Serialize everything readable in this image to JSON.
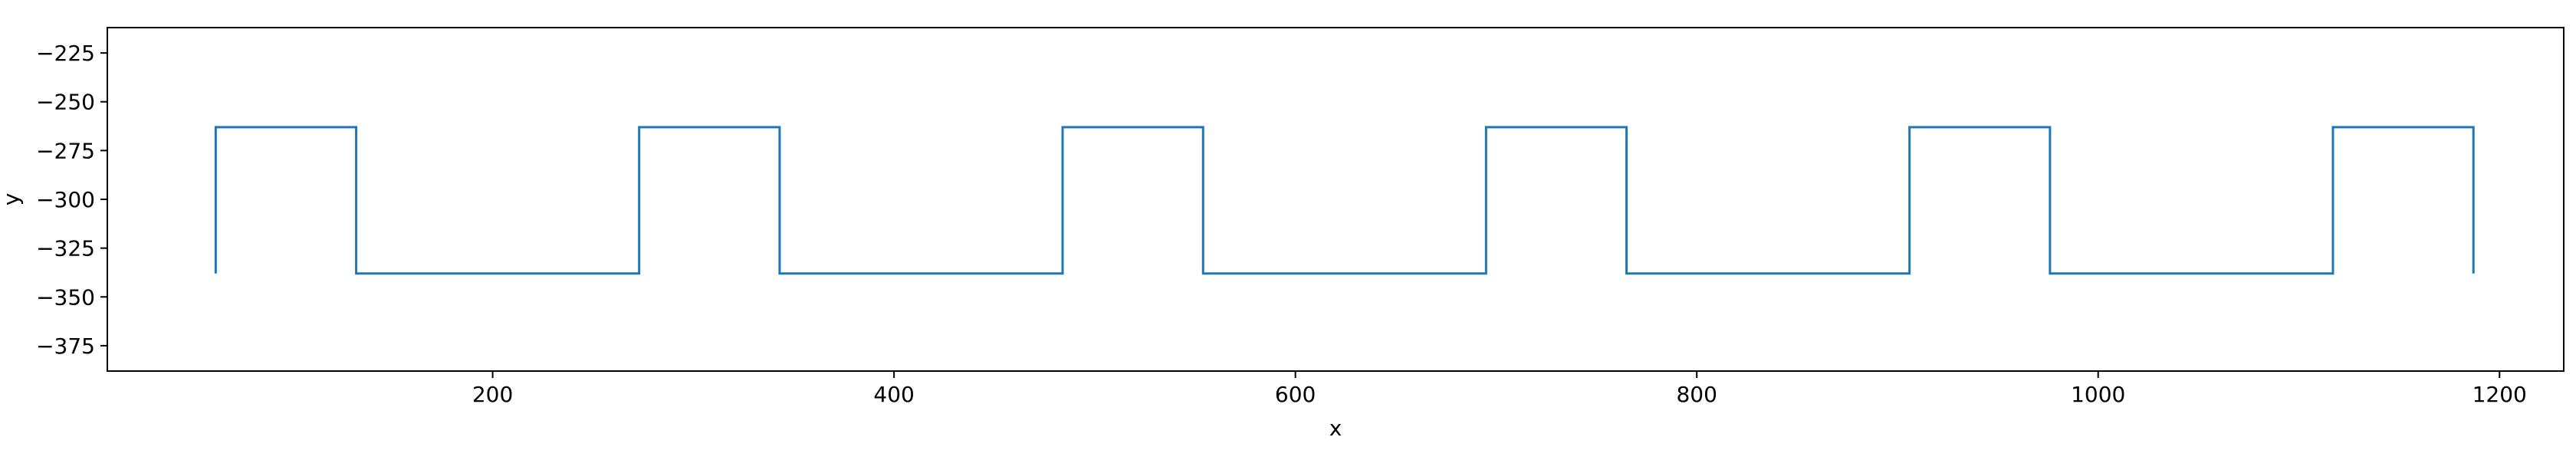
{
  "chart_data": {
    "type": "line",
    "title": "",
    "xlabel": "x",
    "ylabel": "y",
    "xlim": [
      8,
      1232
    ],
    "ylim": [
      -388,
      -212
    ],
    "xticks": [
      200,
      400,
      600,
      800,
      1000,
      1200
    ],
    "xtick_labels": [
      "200",
      "400",
      "600",
      "800",
      "1000",
      "1200"
    ],
    "yticks": [
      -225,
      -250,
      -275,
      -300,
      -325,
      -350,
      -375
    ],
    "ytick_labels": [
      "−225",
      "−250",
      "−275",
      "−300",
      "−325",
      "−350",
      "−375"
    ],
    "grid": false,
    "legend": "none",
    "series": [
      {
        "color": "#1f77b4",
        "x": [
          62,
          62,
          132,
          132,
          273,
          273,
          343,
          343,
          484,
          484,
          554,
          554,
          695,
          695,
          765,
          765,
          906,
          906,
          976,
          976,
          1117,
          1117,
          1187,
          1187
        ],
        "y": [
          -338,
          -263,
          -263,
          -338,
          -338,
          -263,
          -263,
          -338,
          -338,
          -263,
          -263,
          -338,
          -338,
          -263,
          -263,
          -338,
          -338,
          -263,
          -263,
          -338,
          -338,
          -263,
          -263,
          -338
        ]
      }
    ]
  }
}
